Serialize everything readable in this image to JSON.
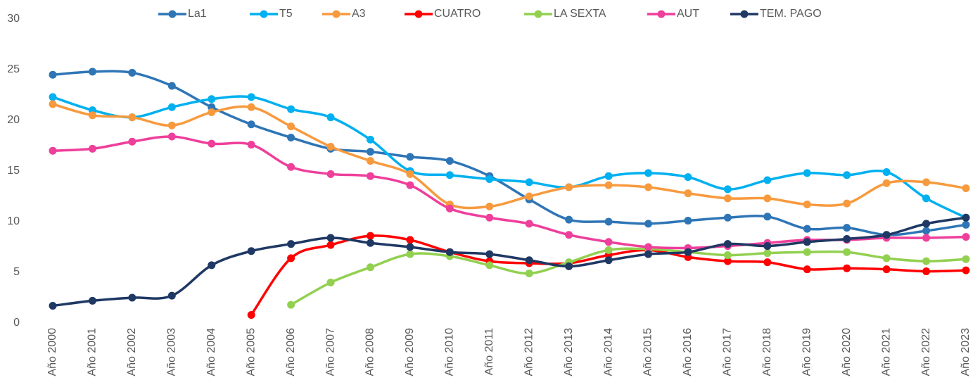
{
  "chart_data": {
    "type": "line",
    "categories": [
      "Año 2000",
      "Año 2001",
      "Año 2002",
      "Año 2003",
      "Año 2004",
      "Año 2005",
      "Año 2006",
      "Año 2007",
      "Año 2008",
      "Año 2009",
      "Año 2010",
      "Año 2011",
      "Año 2012",
      "Año 2013",
      "Año 2014",
      "Año 2015",
      "Año 2016",
      "Año 2017",
      "Año 2018",
      "Año 2019",
      "Año 2020",
      "Año 2021",
      "Año 2022",
      "Año 2023"
    ],
    "series": [
      {
        "name": "La1",
        "color": "#2e75b6",
        "values": [
          24.5,
          24.8,
          24.7,
          23.4,
          21.3,
          19.6,
          18.3,
          17.2,
          16.9,
          16.4,
          16.0,
          14.5,
          12.2,
          10.2,
          10.0,
          9.8,
          10.1,
          10.4,
          10.5,
          9.3,
          9.4,
          8.7,
          9.1,
          9.7
        ]
      },
      {
        "name": "T5",
        "color": "#00b0f0",
        "values": [
          22.3,
          21.0,
          20.3,
          21.3,
          22.1,
          22.3,
          21.1,
          20.3,
          18.1,
          15.0,
          14.6,
          14.2,
          13.9,
          13.4,
          14.5,
          14.8,
          14.4,
          13.2,
          14.1,
          14.8,
          14.6,
          14.9,
          12.3,
          10.4
        ]
      },
      {
        "name": "A3",
        "color": "#f79a3e",
        "values": [
          21.6,
          20.5,
          20.3,
          19.5,
          20.8,
          21.3,
          19.4,
          17.4,
          16.0,
          14.7,
          11.7,
          11.5,
          12.5,
          13.4,
          13.6,
          13.4,
          12.8,
          12.3,
          12.3,
          11.7,
          11.8,
          13.8,
          13.9,
          13.3
        ]
      },
      {
        "name": "CUATRO",
        "color": "#ff0000",
        "values": [
          null,
          null,
          null,
          null,
          null,
          0.8,
          6.4,
          7.7,
          8.6,
          8.2,
          7.0,
          6.1,
          5.9,
          5.9,
          6.7,
          7.2,
          6.5,
          6.1,
          6.0,
          5.3,
          5.4,
          5.3,
          5.1,
          5.2
        ]
      },
      {
        "name": "LA SEXTA",
        "color": "#92d050",
        "values": [
          null,
          null,
          null,
          null,
          null,
          null,
          1.8,
          4.0,
          5.5,
          6.8,
          6.6,
          5.7,
          4.9,
          6.0,
          7.2,
          7.3,
          7.0,
          6.7,
          6.9,
          7.0,
          7.0,
          6.4,
          6.1,
          6.3
        ]
      },
      {
        "name": "AUT",
        "color": "#ee3f9b",
        "values": [
          17.0,
          17.2,
          17.9,
          18.4,
          17.7,
          17.6,
          15.4,
          14.7,
          14.5,
          13.6,
          11.3,
          10.4,
          9.8,
          8.7,
          8.0,
          7.5,
          7.4,
          7.6,
          7.9,
          8.2,
          8.2,
          8.4,
          8.4,
          8.5
        ]
      },
      {
        "name": "TEM. PAGO",
        "color": "#1f3864",
        "values": [
          1.7,
          2.2,
          2.5,
          2.7,
          5.7,
          7.1,
          7.8,
          8.4,
          7.9,
          7.5,
          7.0,
          6.8,
          6.2,
          5.6,
          6.2,
          6.8,
          7.0,
          7.8,
          7.6,
          8.0,
          8.3,
          8.7,
          9.8,
          10.4
        ]
      }
    ],
    "ylim": [
      0,
      30
    ],
    "yticks": [
      0,
      5,
      10,
      15,
      20,
      25,
      30
    ],
    "grid": false,
    "legend": "top"
  }
}
